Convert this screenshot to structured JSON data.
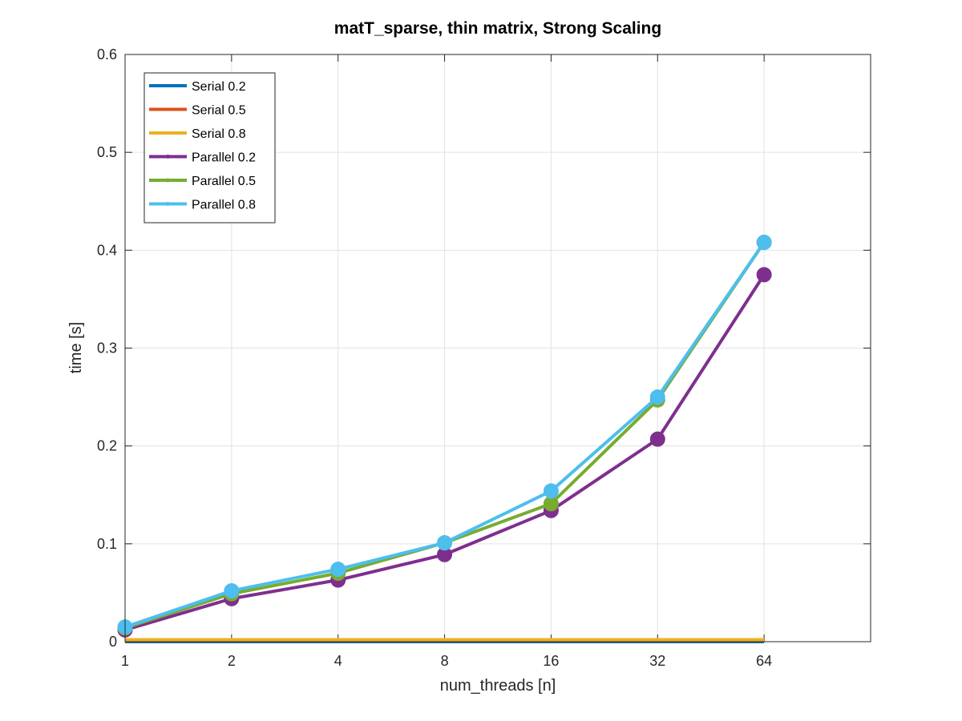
{
  "chart_data": {
    "type": "line",
    "title": "matT_sparse, thin matrix, Strong Scaling",
    "xlabel": "num_threads [n]",
    "ylabel": "time [s]",
    "x_scale": "log2",
    "x": [
      1,
      2,
      4,
      8,
      16,
      32,
      64
    ],
    "x_tick_labels": [
      "1",
      "2",
      "4",
      "8",
      "16",
      "32",
      "64"
    ],
    "xlim": [
      1,
      128
    ],
    "ylim": [
      0,
      0.6
    ],
    "y_ticks": [
      0,
      0.1,
      0.2,
      0.3,
      0.4,
      0.5,
      0.6
    ],
    "y_tick_labels": [
      "0",
      "0.1",
      "0.2",
      "0.3",
      "0.4",
      "0.5",
      "0.6"
    ],
    "grid": true,
    "legend_position": "top-left",
    "series": [
      {
        "name": "Serial 0.2",
        "color": "#0072BD",
        "marker": "none",
        "values": [
          0.0,
          0.0,
          0.0,
          0.0,
          0.0,
          0.0,
          0.0
        ]
      },
      {
        "name": "Serial 0.5",
        "color": "#D95319",
        "marker": "none",
        "values": [
          0.001,
          0.001,
          0.001,
          0.001,
          0.001,
          0.001,
          0.001
        ]
      },
      {
        "name": "Serial 0.8",
        "color": "#EDB120",
        "marker": "none",
        "values": [
          0.002,
          0.002,
          0.002,
          0.002,
          0.002,
          0.002,
          0.002
        ]
      },
      {
        "name": "Parallel 0.2",
        "color": "#7E2F8E",
        "marker": "circle",
        "values": [
          0.012,
          0.044,
          0.063,
          0.089,
          0.134,
          0.207,
          0.375
        ]
      },
      {
        "name": "Parallel 0.5",
        "color": "#77AC30",
        "marker": "circle",
        "values": [
          0.014,
          0.049,
          0.07,
          0.101,
          0.141,
          0.247,
          0.408
        ]
      },
      {
        "name": "Parallel 0.8",
        "color": "#4DBEEE",
        "marker": "circle",
        "values": [
          0.015,
          0.052,
          0.074,
          0.101,
          0.154,
          0.25,
          0.408
        ]
      }
    ]
  }
}
